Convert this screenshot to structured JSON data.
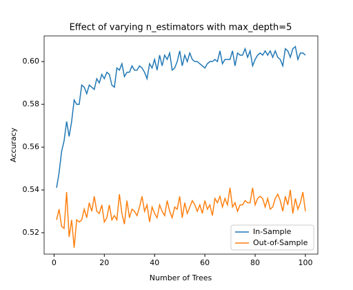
{
  "chart_data": {
    "type": "line",
    "title": "Effect of varying n_estimators with max_depth=5",
    "xlabel": "Number of Trees",
    "ylabel": "Accuracy",
    "x": [
      1,
      2,
      3,
      4,
      5,
      6,
      7,
      8,
      9,
      10,
      11,
      12,
      13,
      14,
      15,
      16,
      17,
      18,
      19,
      20,
      21,
      22,
      23,
      24,
      25,
      26,
      27,
      28,
      29,
      30,
      31,
      32,
      33,
      34,
      35,
      36,
      37,
      38,
      39,
      40,
      41,
      42,
      43,
      44,
      45,
      46,
      47,
      48,
      49,
      50,
      51,
      52,
      53,
      54,
      55,
      56,
      57,
      58,
      59,
      60,
      61,
      62,
      63,
      64,
      65,
      66,
      67,
      68,
      69,
      70,
      71,
      72,
      73,
      74,
      75,
      76,
      77,
      78,
      79,
      80,
      81,
      82,
      83,
      84,
      85,
      86,
      87,
      88,
      89,
      90,
      91,
      92,
      93,
      94,
      95,
      96,
      97,
      98,
      99,
      100
    ],
    "series": [
      {
        "name": "In-Sample",
        "color": "#1f77b4",
        "values": [
          0.541,
          0.548,
          0.558,
          0.563,
          0.572,
          0.565,
          0.572,
          0.582,
          0.58,
          0.58,
          0.589,
          0.588,
          0.585,
          0.589,
          0.588,
          0.587,
          0.592,
          0.59,
          0.594,
          0.592,
          0.595,
          0.594,
          0.589,
          0.588,
          0.597,
          0.596,
          0.599,
          0.593,
          0.595,
          0.595,
          0.598,
          0.596,
          0.596,
          0.598,
          0.597,
          0.595,
          0.592,
          0.599,
          0.597,
          0.601,
          0.596,
          0.603,
          0.598,
          0.603,
          0.601,
          0.604,
          0.596,
          0.597,
          0.6,
          0.605,
          0.598,
          0.603,
          0.6,
          0.604,
          0.601,
          0.6,
          0.6,
          0.599,
          0.598,
          0.597,
          0.599,
          0.6,
          0.6,
          0.601,
          0.6,
          0.605,
          0.599,
          0.601,
          0.601,
          0.601,
          0.605,
          0.598,
          0.604,
          0.603,
          0.603,
          0.606,
          0.602,
          0.605,
          0.598,
          0.601,
          0.603,
          0.604,
          0.603,
          0.605,
          0.603,
          0.605,
          0.602,
          0.605,
          0.602,
          0.601,
          0.598,
          0.606,
          0.605,
          0.602,
          0.606,
          0.607,
          0.601,
          0.604,
          0.604,
          0.603
        ]
      },
      {
        "name": "Out-of-Sample",
        "color": "#ff7f0e",
        "values": [
          0.526,
          0.531,
          0.523,
          0.522,
          0.539,
          0.518,
          0.526,
          0.513,
          0.526,
          0.525,
          0.526,
          0.531,
          0.527,
          0.534,
          0.53,
          0.537,
          0.53,
          0.529,
          0.533,
          0.525,
          0.527,
          0.533,
          0.526,
          0.528,
          0.526,
          0.538,
          0.529,
          0.524,
          0.535,
          0.527,
          0.531,
          0.53,
          0.528,
          0.532,
          0.537,
          0.53,
          0.533,
          0.525,
          0.532,
          0.529,
          0.527,
          0.533,
          0.53,
          0.528,
          0.535,
          0.53,
          0.527,
          0.532,
          0.531,
          0.537,
          0.527,
          0.534,
          0.529,
          0.532,
          0.535,
          0.533,
          0.53,
          0.533,
          0.529,
          0.535,
          0.531,
          0.533,
          0.528,
          0.536,
          0.534,
          0.537,
          0.532,
          0.536,
          0.533,
          0.541,
          0.532,
          0.534,
          0.53,
          0.533,
          0.533,
          0.535,
          0.534,
          0.534,
          0.541,
          0.533,
          0.536,
          0.537,
          0.536,
          0.532,
          0.536,
          0.531,
          0.532,
          0.536,
          0.538,
          0.535,
          0.53,
          0.537,
          0.533,
          0.54,
          0.529,
          0.536,
          0.531,
          0.534,
          0.539,
          0.53
        ]
      }
    ],
    "xlim": [
      -3.95,
      104.95
    ],
    "xticks": [
      0,
      20,
      40,
      60,
      80,
      100
    ],
    "ylim": [
      0.51,
      0.612
    ],
    "yticks": [
      0.52,
      0.54,
      0.56,
      0.58,
      {
        "value": 0.6,
        "label": "0.60"
      }
    ],
    "legend": "lower right"
  }
}
